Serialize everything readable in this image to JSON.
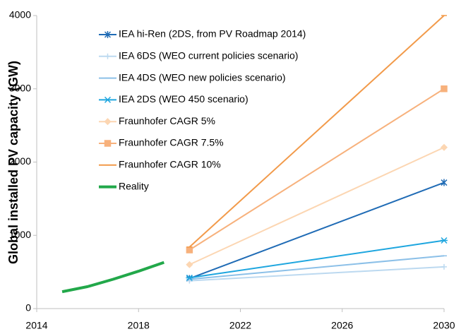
{
  "chart_data": {
    "type": "line",
    "ylabel": "Global installed PV capacity (GW)",
    "xlim": [
      2014,
      2030
    ],
    "xticks": [
      2014,
      2018,
      2022,
      2026,
      2030
    ],
    "ylim": [
      0,
      4000
    ],
    "yticks": [
      0,
      1000,
      2000,
      3000,
      4000
    ],
    "legend": "upper left",
    "series": [
      {
        "name": "IEA hi-Ren (2DS, from PV Roadmap 2014)",
        "color": "#1f6bb5",
        "marker": "star",
        "x": [
          2020,
          2030
        ],
        "values": [
          410,
          1720
        ]
      },
      {
        "name": "IEA 6DS (WEO current policies scenario)",
        "color": "#bcd9f0",
        "marker": "plus",
        "x": [
          2020,
          2030
        ],
        "values": [
          380,
          570
        ]
      },
      {
        "name": "IEA 4DS (WEO new policies scenario)",
        "color": "#8cc0e8",
        "marker": "dash",
        "x": [
          2020,
          2030
        ],
        "values": [
          400,
          720
        ]
      },
      {
        "name": "IEA 2DS (WEO 450 scenario)",
        "color": "#1ea6df",
        "marker": "asterisk",
        "x": [
          2020,
          2030
        ],
        "values": [
          420,
          930
        ]
      },
      {
        "name": "Fraunhofer CAGR 5%",
        "color": "#fcd6b2",
        "marker": "diamond",
        "x": [
          2020,
          2030
        ],
        "values": [
          600,
          2200
        ]
      },
      {
        "name": "Fraunhofer CAGR 7.5%",
        "color": "#f7b17c",
        "marker": "square",
        "x": [
          2020,
          2030
        ],
        "values": [
          800,
          3000
        ]
      },
      {
        "name": "Fraunhofer CAGR 10%",
        "color": "#f29a4a",
        "marker": "dash",
        "x": [
          2020,
          2030
        ],
        "values": [
          840,
          4000
        ]
      },
      {
        "name": "Reality",
        "color": "#22a84a",
        "marker": "none",
        "width": 4,
        "x": [
          2015,
          2016,
          2017,
          2018,
          2019
        ],
        "values": [
          230,
          300,
          400,
          510,
          630
        ]
      }
    ]
  }
}
